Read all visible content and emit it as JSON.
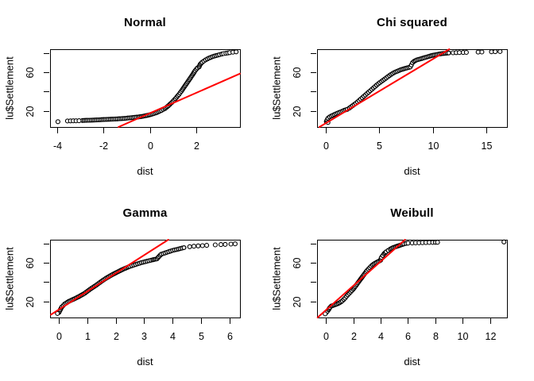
{
  "figure": {
    "background": "#ffffff",
    "panel_grid": "2x2"
  },
  "chart_data": [
    {
      "type": "scatter",
      "title": "Normal",
      "xlabel": "dist",
      "ylabel": "lu$Settlement",
      "xlim": [
        -4.3,
        3.885
      ],
      "ylim": [
        3,
        84.4
      ],
      "xticks": [
        -4,
        -2,
        0,
        2
      ],
      "xtick_labels": [
        "-4",
        "-2",
        "0",
        "2"
      ],
      "yticks": [
        20,
        40,
        60,
        80
      ],
      "ytick_labels": [
        "20",
        "",
        "60",
        ""
      ],
      "point_color": "#000000",
      "line_color": "#ff0000",
      "qqline": {
        "x1": -1.35,
        "y1": 3.0,
        "x2": 3.88,
        "y2": 58.8
      },
      "band": [
        [
          -2.9,
          9.8
        ],
        [
          -2.6,
          10.1
        ],
        [
          -2.3,
          10.4
        ],
        [
          -2.0,
          10.8
        ],
        [
          -1.7,
          11.1
        ],
        [
          -1.4,
          11.5
        ],
        [
          -1.1,
          12.0
        ],
        [
          -0.8,
          12.7
        ],
        [
          -0.5,
          13.5
        ],
        [
          -0.3,
          14.2
        ],
        [
          -0.1,
          15.2
        ],
        [
          0.1,
          16.5
        ],
        [
          0.3,
          18.1
        ],
        [
          0.5,
          20.4
        ],
        [
          0.65,
          22.3
        ],
        [
          0.8,
          25.3
        ],
        [
          0.95,
          28.7
        ],
        [
          1.1,
          32.6
        ],
        [
          1.25,
          37.0
        ],
        [
          1.4,
          41.9
        ],
        [
          1.55,
          47.3
        ],
        [
          1.7,
          52.6
        ],
        [
          1.85,
          58.0
        ],
        [
          1.95,
          61.9
        ],
        [
          2.05,
          64.8
        ],
        [
          2.12,
          65.8
        ],
        [
          2.17,
          68.6
        ],
        [
          2.25,
          70.7
        ],
        [
          2.4,
          73.2
        ],
        [
          2.55,
          75.1
        ],
        [
          2.7,
          76.6
        ],
        [
          2.85,
          77.7
        ],
        [
          3.0,
          78.7
        ],
        [
          3.1,
          79.3
        ]
      ],
      "sparse": [
        [
          -3.96,
          8.6
        ],
        [
          -3.55,
          9.3
        ],
        [
          -3.42,
          9.4
        ],
        [
          -3.3,
          9.45
        ],
        [
          -3.18,
          9.5
        ],
        [
          -3.05,
          9.6
        ],
        [
          3.18,
          79.8
        ],
        [
          3.28,
          80.2
        ],
        [
          3.36,
          80.5
        ],
        [
          3.44,
          80.8
        ],
        [
          3.58,
          81.3
        ],
        [
          3.72,
          81.7
        ]
      ]
    },
    {
      "type": "scatter",
      "title": "Chi squared",
      "xlabel": "dist",
      "ylabel": "lu$Settlement",
      "xlim": [
        -0.82,
        16.95
      ],
      "ylim": [
        3,
        84.4
      ],
      "xticks": [
        0,
        5,
        10,
        15
      ],
      "xtick_labels": [
        "0",
        "5",
        "10",
        "15"
      ],
      "yticks": [
        20,
        40,
        60,
        80
      ],
      "ytick_labels": [
        "20",
        "",
        "60",
        ""
      ],
      "point_color": "#000000",
      "line_color": "#ff0000",
      "qqline": {
        "x1": -0.6,
        "y1": 3.0,
        "x2": 11.55,
        "y2": 84.4
      },
      "band": [
        [
          0.05,
          8.7
        ],
        [
          0.1,
          10.1
        ],
        [
          0.2,
          12.1
        ],
        [
          0.35,
          13.5
        ],
        [
          0.5,
          14.5
        ],
        [
          0.8,
          16.0
        ],
        [
          1.1,
          17.5
        ],
        [
          1.4,
          18.9
        ],
        [
          1.7,
          20.4
        ],
        [
          2.0,
          21.4
        ],
        [
          2.2,
          22.8
        ],
        [
          2.5,
          25.3
        ],
        [
          2.8,
          27.7
        ],
        [
          3.1,
          30.6
        ],
        [
          3.4,
          33.6
        ],
        [
          3.7,
          36.5
        ],
        [
          4.0,
          39.4
        ],
        [
          4.3,
          42.4
        ],
        [
          4.6,
          45.3
        ],
        [
          4.9,
          48.2
        ],
        [
          5.2,
          50.7
        ],
        [
          5.5,
          53.1
        ],
        [
          5.8,
          55.6
        ],
        [
          6.1,
          58.0
        ],
        [
          6.4,
          60.0
        ],
        [
          6.7,
          61.4
        ],
        [
          7.0,
          62.9
        ],
        [
          7.3,
          63.9
        ],
        [
          7.6,
          64.8
        ],
        [
          7.9,
          65.8
        ],
        [
          8.0,
          67.8
        ],
        [
          8.1,
          70.2
        ],
        [
          8.25,
          71.7
        ],
        [
          8.5,
          73.2
        ],
        [
          8.8,
          74.1
        ],
        [
          9.1,
          75.1
        ],
        [
          9.4,
          76.1
        ],
        [
          9.7,
          77.1
        ],
        [
          10.0,
          78.0
        ],
        [
          10.3,
          78.7
        ],
        [
          10.6,
          79.3
        ],
        [
          10.9,
          79.8
        ],
        [
          11.2,
          80.2
        ],
        [
          11.5,
          80.5
        ]
      ],
      "sparse": [
        [
          0.2,
          7.8
        ],
        [
          11.9,
          80.7
        ],
        [
          12.2,
          80.8
        ],
        [
          12.5,
          80.9
        ],
        [
          12.85,
          81.0
        ],
        [
          13.15,
          81.1
        ],
        [
          14.25,
          81.4
        ],
        [
          14.6,
          81.5
        ],
        [
          15.5,
          81.75
        ],
        [
          15.85,
          81.85
        ],
        [
          16.3,
          82.0
        ]
      ]
    },
    {
      "type": "scatter",
      "title": "Gamma",
      "xlabel": "dist",
      "ylabel": "lu$Settlement",
      "xlim": [
        -0.31,
        6.37
      ],
      "ylim": [
        3,
        84.4
      ],
      "xticks": [
        0,
        1,
        2,
        3,
        4,
        5,
        6
      ],
      "xtick_labels": [
        "0",
        "1",
        "2",
        "3",
        "4",
        "5",
        "6"
      ],
      "yticks": [
        20,
        40,
        60,
        80
      ],
      "ytick_labels": [
        "20",
        "",
        "60",
        ""
      ],
      "point_color": "#000000",
      "line_color": "#ff0000",
      "qqline": {
        "x1": -0.28,
        "y1": 6.0,
        "x2": 3.85,
        "y2": 84.4
      },
      "band": [
        [
          0.0,
          8.2
        ],
        [
          0.05,
          11.1
        ],
        [
          0.1,
          14.0
        ],
        [
          0.2,
          17.0
        ],
        [
          0.35,
          19.9
        ],
        [
          0.5,
          21.9
        ],
        [
          0.7,
          24.8
        ],
        [
          0.9,
          28.2
        ],
        [
          1.1,
          32.6
        ],
        [
          1.3,
          36.5
        ],
        [
          1.5,
          40.9
        ],
        [
          1.7,
          44.8
        ],
        [
          1.9,
          48.2
        ],
        [
          2.1,
          51.2
        ],
        [
          2.3,
          54.1
        ],
        [
          2.5,
          56.5
        ],
        [
          2.7,
          58.5
        ],
        [
          2.9,
          60.4
        ],
        [
          3.1,
          61.9
        ],
        [
          3.3,
          63.4
        ],
        [
          3.45,
          64.4
        ],
        [
          3.52,
          66.8
        ],
        [
          3.6,
          69.2
        ],
        [
          3.8,
          71.2
        ],
        [
          4.0,
          73.2
        ],
        [
          4.2,
          74.6
        ],
        [
          4.4,
          76.1
        ]
      ],
      "sparse": [
        [
          -0.05,
          7.2
        ],
        [
          4.6,
          77.1
        ],
        [
          4.75,
          77.6
        ],
        [
          4.9,
          77.9
        ],
        [
          5.05,
          78.2
        ],
        [
          5.2,
          78.5
        ],
        [
          5.5,
          79.0
        ],
        [
          5.7,
          79.3
        ],
        [
          5.85,
          79.5
        ],
        [
          6.05,
          79.8
        ],
        [
          6.2,
          80.1
        ]
      ]
    },
    {
      "type": "scatter",
      "title": "Weibull",
      "xlabel": "dist",
      "ylabel": "lu$Settlement",
      "xlim": [
        -0.64,
        13.22
      ],
      "ylim": [
        3,
        84.4
      ],
      "xticks": [
        0,
        2,
        4,
        6,
        8,
        10,
        12
      ],
      "xtick_labels": [
        "0",
        "2",
        "4",
        "6",
        "8",
        "10",
        "12"
      ],
      "yticks": [
        20,
        40,
        60,
        80
      ],
      "ytick_labels": [
        "20",
        "",
        "60",
        ""
      ],
      "point_color": "#000000",
      "line_color": "#ff0000",
      "qqline": {
        "x1": -0.6,
        "y1": 3.0,
        "x2": 5.78,
        "y2": 84.4
      },
      "band": [
        [
          0.0,
          7.7
        ],
        [
          0.1,
          9.2
        ],
        [
          0.2,
          11.1
        ],
        [
          0.3,
          13.5
        ],
        [
          0.4,
          15.0
        ],
        [
          0.6,
          16.0
        ],
        [
          0.8,
          17.0
        ],
        [
          1.0,
          18.4
        ],
        [
          1.2,
          20.4
        ],
        [
          1.4,
          23.3
        ],
        [
          1.6,
          26.7
        ],
        [
          1.8,
          29.7
        ],
        [
          2.0,
          32.6
        ],
        [
          2.2,
          36.5
        ],
        [
          2.4,
          40.4
        ],
        [
          2.6,
          44.3
        ],
        [
          2.8,
          48.2
        ],
        [
          3.0,
          52.1
        ],
        [
          3.2,
          55.1
        ],
        [
          3.4,
          58.0
        ],
        [
          3.6,
          59.9
        ],
        [
          3.8,
          61.4
        ],
        [
          4.0,
          62.9
        ],
        [
          4.05,
          65.8
        ],
        [
          4.15,
          67.8
        ],
        [
          4.25,
          69.7
        ],
        [
          4.4,
          71.7
        ],
        [
          4.55,
          73.2
        ],
        [
          4.7,
          74.6
        ],
        [
          4.9,
          76.1
        ],
        [
          5.1,
          77.1
        ],
        [
          5.3,
          78.0
        ],
        [
          5.5,
          79.0
        ],
        [
          5.7,
          80.0
        ],
        [
          5.85,
          80.5
        ]
      ],
      "sparse": [
        [
          -0.05,
          6.8
        ],
        [
          6.0,
          80.8
        ],
        [
          6.3,
          81.0
        ],
        [
          6.55,
          81.1
        ],
        [
          6.8,
          81.2
        ],
        [
          7.05,
          81.3
        ],
        [
          7.3,
          81.4
        ],
        [
          7.55,
          81.5
        ],
        [
          7.8,
          81.6
        ],
        [
          8.0,
          81.65
        ],
        [
          8.15,
          81.75
        ],
        [
          13.0,
          82.05
        ]
      ]
    }
  ]
}
